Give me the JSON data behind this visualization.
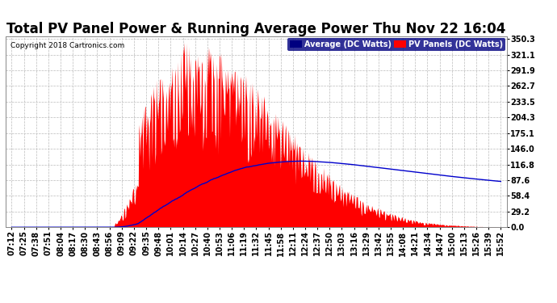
{
  "title": "Total PV Panel Power & Running Average Power Thu Nov 22 16:04",
  "copyright": "Copyright 2018 Cartronics.com",
  "legend_avg": "Average (DC Watts)",
  "legend_pv": "PV Panels (DC Watts)",
  "y_ticks": [
    0.0,
    29.2,
    58.4,
    87.6,
    116.8,
    146.0,
    175.1,
    204.3,
    233.5,
    262.7,
    291.9,
    321.1,
    350.3
  ],
  "ylim": [
    0,
    355
  ],
  "bg_color": "#ffffff",
  "plot_bg_color": "#ffffff",
  "pv_color": "#ff0000",
  "avg_color": "#0000cc",
  "grid_color": "#bbbbbb",
  "title_fontsize": 12,
  "tick_fontsize": 7,
  "x_tick_labels": [
    "07:12",
    "07:25",
    "07:38",
    "07:51",
    "08:04",
    "08:17",
    "08:30",
    "08:43",
    "08:56",
    "09:09",
    "09:22",
    "09:35",
    "09:48",
    "10:01",
    "10:14",
    "10:27",
    "10:40",
    "10:53",
    "11:06",
    "11:19",
    "11:32",
    "11:45",
    "11:58",
    "12:11",
    "12:24",
    "12:37",
    "12:50",
    "13:03",
    "13:16",
    "13:29",
    "13:42",
    "13:55",
    "14:08",
    "14:21",
    "14:34",
    "14:47",
    "15:00",
    "15:13",
    "15:26",
    "15:39",
    "15:52"
  ]
}
